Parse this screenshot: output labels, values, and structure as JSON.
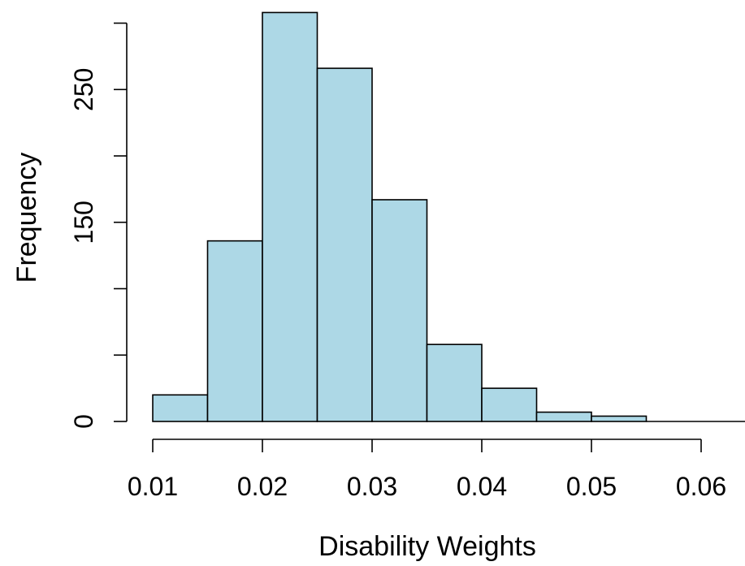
{
  "chart_data": {
    "type": "bar",
    "subtype": "histogram",
    "title": "",
    "xlabel": "Disability Weights",
    "ylabel": "Frequency",
    "bins": [
      {
        "start": 0.01,
        "end": 0.015,
        "count": 20
      },
      {
        "start": 0.015,
        "end": 0.02,
        "count": 136
      },
      {
        "start": 0.02,
        "end": 0.025,
        "count": 308
      },
      {
        "start": 0.025,
        "end": 0.03,
        "count": 266
      },
      {
        "start": 0.03,
        "end": 0.035,
        "count": 167
      },
      {
        "start": 0.035,
        "end": 0.04,
        "count": 58
      },
      {
        "start": 0.04,
        "end": 0.045,
        "count": 25
      },
      {
        "start": 0.045,
        "end": 0.05,
        "count": 7
      },
      {
        "start": 0.05,
        "end": 0.055,
        "count": 4
      }
    ],
    "x_ticks": [
      0.01,
      0.02,
      0.03,
      0.04,
      0.05,
      0.06
    ],
    "x_tick_labels": [
      "0.01",
      "0.02",
      "0.03",
      "0.04",
      "0.05",
      "0.06"
    ],
    "y_ticks": [
      0,
      50,
      100,
      150,
      200,
      250,
      300
    ],
    "y_tick_labels": [
      "0",
      "",
      "",
      "150",
      "",
      "250",
      ""
    ],
    "xlim": [
      0.01,
      0.064
    ],
    "ylim": [
      0,
      308
    ],
    "grid": false,
    "legend": "none",
    "bar_color": "#add8e6",
    "bar_edge_color": "#000000"
  }
}
